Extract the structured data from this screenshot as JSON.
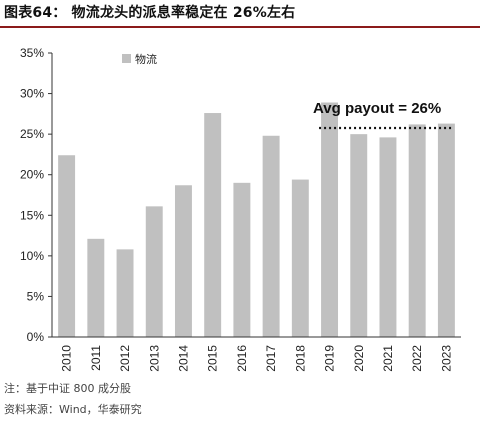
{
  "header": {
    "title": "图表64：  物流龙头的派息率稳定在 26%左右"
  },
  "chart_data": {
    "type": "bar",
    "categories": [
      "2010",
      "2011",
      "2012",
      "2013",
      "2014",
      "2015",
      "2016",
      "2017",
      "2018",
      "2019",
      "2020",
      "2021",
      "2022",
      "2023"
    ],
    "series": [
      {
        "name": "物流",
        "values": [
          22.4,
          12.1,
          10.8,
          16.1,
          18.7,
          27.6,
          19.0,
          24.8,
          19.4,
          28.9,
          25.0,
          24.6,
          26.2,
          26.3
        ]
      }
    ],
    "yticks": [
      "0%",
      "5%",
      "10%",
      "15%",
      "20%",
      "25%",
      "30%",
      "35%"
    ],
    "ylim": [
      0,
      35
    ],
    "bar_color": "#c0c0c0",
    "legend_position": "top-left",
    "grid": false,
    "annotation": {
      "text": "Avg payout = 26%",
      "value": 26,
      "from_category": "2019",
      "to_category": "2023",
      "line_style": "dotted"
    }
  },
  "footer": {
    "note": "注：基于中证 800 成分股",
    "source": "资料来源：Wind，华泰研究"
  }
}
